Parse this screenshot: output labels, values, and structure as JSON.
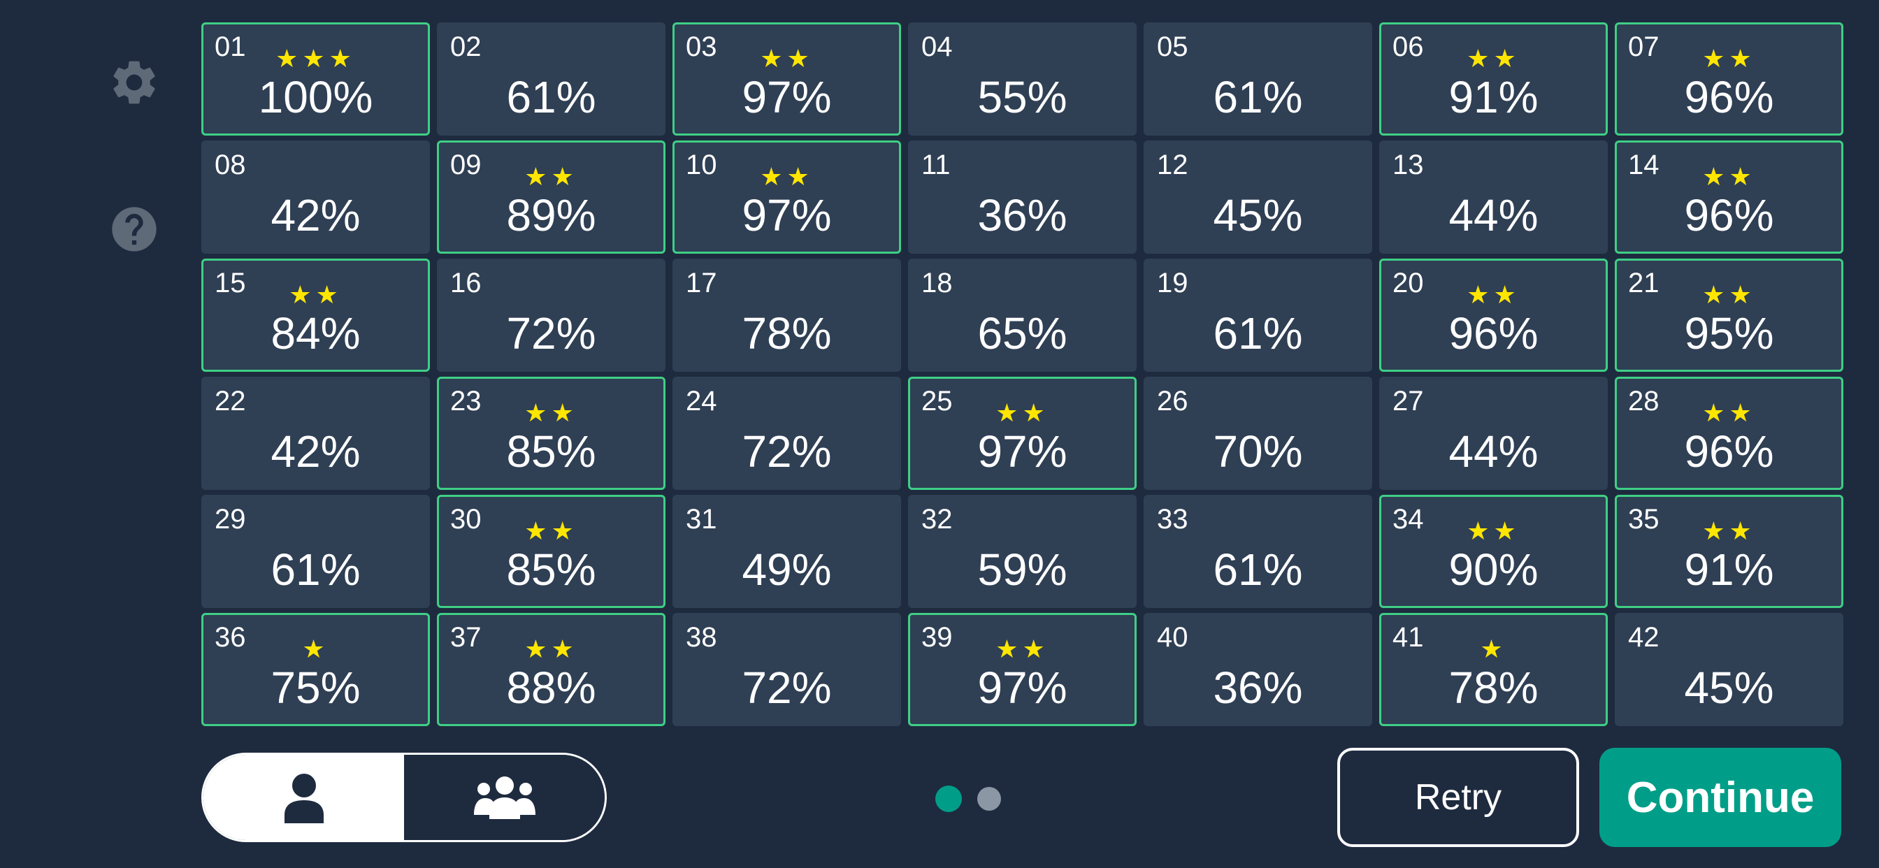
{
  "colors": {
    "background": "#1e2b3f",
    "cell_background": "#2f3f54",
    "completed_border": "#3fcf86",
    "star": "#ffe600",
    "accent": "#009e88",
    "icon_gray": "#5f6a78",
    "inactive_dot": "#8c97a6"
  },
  "side_icons": [
    "gear-icon",
    "question-circle-icon"
  ],
  "levels": [
    {
      "num": "01",
      "stars": 3,
      "pct": "100%"
    },
    {
      "num": "02",
      "stars": 0,
      "pct": "61%"
    },
    {
      "num": "03",
      "stars": 2,
      "pct": "97%"
    },
    {
      "num": "04",
      "stars": 0,
      "pct": "55%"
    },
    {
      "num": "05",
      "stars": 0,
      "pct": "61%"
    },
    {
      "num": "06",
      "stars": 2,
      "pct": "91%"
    },
    {
      "num": "07",
      "stars": 2,
      "pct": "96%"
    },
    {
      "num": "08",
      "stars": 0,
      "pct": "42%"
    },
    {
      "num": "09",
      "stars": 2,
      "pct": "89%"
    },
    {
      "num": "10",
      "stars": 2,
      "pct": "97%"
    },
    {
      "num": "11",
      "stars": 0,
      "pct": "36%"
    },
    {
      "num": "12",
      "stars": 0,
      "pct": "45%"
    },
    {
      "num": "13",
      "stars": 0,
      "pct": "44%"
    },
    {
      "num": "14",
      "stars": 2,
      "pct": "96%"
    },
    {
      "num": "15",
      "stars": 2,
      "pct": "84%"
    },
    {
      "num": "16",
      "stars": 0,
      "pct": "72%"
    },
    {
      "num": "17",
      "stars": 0,
      "pct": "78%"
    },
    {
      "num": "18",
      "stars": 0,
      "pct": "65%"
    },
    {
      "num": "19",
      "stars": 0,
      "pct": "61%"
    },
    {
      "num": "20",
      "stars": 2,
      "pct": "96%"
    },
    {
      "num": "21",
      "stars": 2,
      "pct": "95%"
    },
    {
      "num": "22",
      "stars": 0,
      "pct": "42%"
    },
    {
      "num": "23",
      "stars": 2,
      "pct": "85%"
    },
    {
      "num": "24",
      "stars": 0,
      "pct": "72%"
    },
    {
      "num": "25",
      "stars": 2,
      "pct": "97%"
    },
    {
      "num": "26",
      "stars": 0,
      "pct": "70%"
    },
    {
      "num": "27",
      "stars": 0,
      "pct": "44%"
    },
    {
      "num": "28",
      "stars": 2,
      "pct": "96%"
    },
    {
      "num": "29",
      "stars": 0,
      "pct": "61%"
    },
    {
      "num": "30",
      "stars": 2,
      "pct": "85%"
    },
    {
      "num": "31",
      "stars": 0,
      "pct": "49%"
    },
    {
      "num": "32",
      "stars": 0,
      "pct": "59%"
    },
    {
      "num": "33",
      "stars": 0,
      "pct": "61%"
    },
    {
      "num": "34",
      "stars": 2,
      "pct": "90%"
    },
    {
      "num": "35",
      "stars": 2,
      "pct": "91%"
    },
    {
      "num": "36",
      "stars": 1,
      "pct": "75%"
    },
    {
      "num": "37",
      "stars": 2,
      "pct": "88%"
    },
    {
      "num": "38",
      "stars": 0,
      "pct": "72%"
    },
    {
      "num": "39",
      "stars": 2,
      "pct": "97%"
    },
    {
      "num": "40",
      "stars": 0,
      "pct": "36%"
    },
    {
      "num": "41",
      "stars": 1,
      "pct": "78%"
    },
    {
      "num": "42",
      "stars": 0,
      "pct": "45%"
    }
  ],
  "mode_toggle": {
    "options": [
      "single-player-icon",
      "multiplayer-icon"
    ],
    "selected": 0
  },
  "pager": {
    "pages": 2,
    "current": 0
  },
  "buttons": {
    "retry": "Retry",
    "continue": "Continue"
  }
}
